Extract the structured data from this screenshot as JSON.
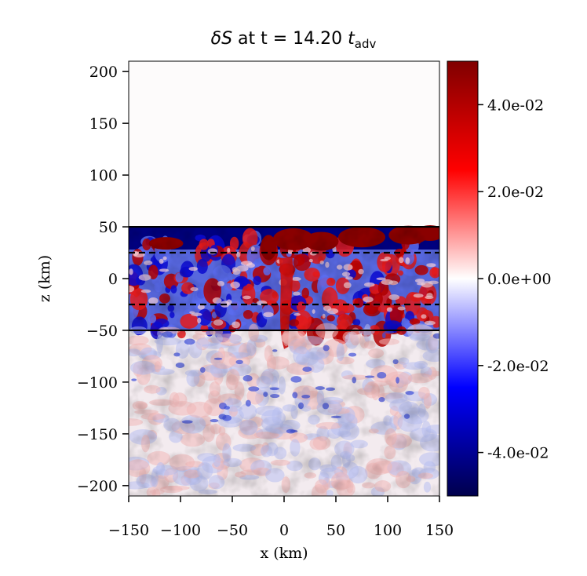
{
  "chart_data": {
    "type": "heatmap",
    "title": {
      "main": "δS at t = 14.20 ",
      "var_symbol": "δ",
      "var_name": "S",
      "time_text": " at t = 14.20 ",
      "time_unit": "t",
      "time_unit_sub": "adv"
    },
    "xlabel": "x (km)",
    "ylabel": "z (km)",
    "xlim": [
      -150,
      150
    ],
    "ylim": [
      -210,
      210
    ],
    "xticks": [
      -150,
      -100,
      -50,
      0,
      50,
      100,
      150
    ],
    "xtick_labels": [
      "−150",
      "−100",
      "−50",
      "0",
      "50",
      "100",
      "150"
    ],
    "yticks": [
      200,
      150,
      100,
      50,
      0,
      -50,
      -100,
      -150,
      -200
    ],
    "ytick_labels": [
      "200",
      "150",
      "100",
      "50",
      "0",
      "−50",
      "−100",
      "−150",
      "−200"
    ],
    "colorbar": {
      "cmap": "seismic",
      "vmin": -0.05,
      "vmax": 0.05,
      "ticks": [
        0.04,
        0.02,
        0.0,
        -0.02,
        -0.04
      ],
      "tick_labels": [
        "4.0e-02",
        "2.0e-02",
        "0.0e+00",
        "-2.0e-02",
        "-4.0e-02"
      ]
    },
    "hlines": [
      {
        "z": 50,
        "style": "solid"
      },
      {
        "z": 25,
        "style": "dashed"
      },
      {
        "z": -25,
        "style": "dashed"
      },
      {
        "z": -50,
        "style": "solid"
      }
    ],
    "grid": false,
    "colors": {
      "positive_max": "#800000",
      "negative_max": "#00004c",
      "zero": "#ffffff"
    }
  }
}
